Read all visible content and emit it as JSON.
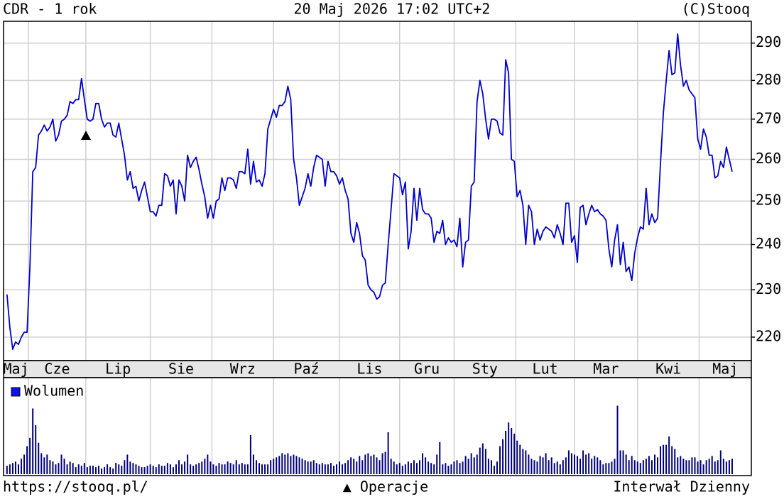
{
  "header": {
    "left": "CDR - 1 rok",
    "center": "20 Maj 2026 17:02 UTC+2",
    "right": "(C)Stooq"
  },
  "footer": {
    "left": "https://stooq.pl/",
    "center": "▲ Operacje",
    "right": "Interwał Dzienny"
  },
  "chart_data": [
    {
      "type": "line",
      "color": "#0000cc",
      "log": true,
      "grid": true,
      "ylim": [
        215.2,
        296
      ],
      "yticks": [
        220,
        230,
        240,
        250,
        260,
        270,
        280,
        290
      ],
      "xlim": [
        -1.2,
        259.7
      ],
      "xticks": [
        {
          "value": -1.2,
          "label": "Maj"
        },
        {
          "value": 7.5,
          "label": "Cze"
        },
        {
          "value": 27.5,
          "label": "Lip"
        },
        {
          "value": 50,
          "label": "Sie"
        },
        {
          "value": 71.5,
          "label": "Wrz"
        },
        {
          "value": 93,
          "label": "Paź"
        },
        {
          "value": 116,
          "label": "Lis"
        },
        {
          "value": 137,
          "label": "Gru"
        },
        {
          "value": 156,
          "label": "Sty"
        },
        {
          "value": 177.5,
          "label": "Lut"
        },
        {
          "value": 198,
          "label": "Mar"
        },
        {
          "value": 220,
          "label": "Kwi"
        },
        {
          "value": 241.5,
          "label": "Maj"
        }
      ],
      "values": [
        229,
        222,
        217.5,
        219,
        218.5,
        220,
        221,
        221,
        235,
        257,
        258,
        266,
        267,
        268.5,
        267,
        268,
        270,
        264.5,
        266,
        269.5,
        270,
        271,
        274.5,
        274,
        275,
        275,
        280.5,
        275,
        270,
        269.5,
        270,
        274,
        274,
        270,
        268,
        269,
        269,
        266,
        265.5,
        269,
        265,
        261,
        255,
        257,
        253,
        253.5,
        250,
        252.5,
        254.5,
        251,
        247.5,
        247.5,
        246.5,
        249,
        249,
        256.5,
        256,
        253.5,
        255,
        247,
        255,
        253.5,
        250,
        261,
        258,
        259.5,
        260.5,
        257.5,
        254,
        251,
        246,
        249,
        246,
        250,
        250.5,
        255.5,
        252.5,
        255.5,
        255.5,
        255,
        253,
        257,
        257,
        256.5,
        262.5,
        254,
        259.5,
        254.5,
        255,
        253.5,
        256.5,
        267.5,
        270,
        272.5,
        270.5,
        273.5,
        273.5,
        274.5,
        278.5,
        275,
        260,
        255.5,
        249,
        251,
        253,
        256.5,
        253.5,
        258,
        261,
        260.5,
        260,
        253.5,
        259.5,
        257,
        257,
        256,
        254,
        255.5,
        252.5,
        250.5,
        242.5,
        240.5,
        245,
        242.5,
        237.5,
        236.5,
        231,
        230,
        229.5,
        228,
        228.5,
        231,
        231.5,
        240,
        248,
        256.5,
        256,
        255.5,
        251.5,
        254.5,
        239,
        243,
        253,
        245.5,
        253,
        248,
        247,
        247,
        246,
        240.5,
        243,
        242.5,
        245.5,
        240,
        241.5,
        240.5,
        241,
        239.5,
        246,
        235,
        240.5,
        241,
        253.5,
        254.5,
        274.5,
        280,
        276.5,
        270,
        265,
        270,
        270,
        269.5,
        266.5,
        266,
        285.5,
        282,
        260,
        259.5,
        251,
        252.5,
        249,
        240,
        249,
        247.5,
        240,
        243.5,
        241,
        243,
        244,
        243.5,
        243,
        241.5,
        244.5,
        242.5,
        240,
        249.5,
        249.5,
        240.5,
        242,
        236,
        248.5,
        249,
        244.5,
        247,
        249,
        247.5,
        248,
        247,
        246.5,
        245.5,
        239,
        235,
        241,
        244.5,
        235.5,
        240.5,
        234,
        235,
        232,
        238,
        241.5,
        244,
        243.5,
        253,
        244.5,
        247,
        245,
        246,
        259,
        271.5,
        280,
        288,
        281.5,
        282,
        292.5,
        284,
        278.5,
        280,
        277.5,
        276.5,
        275.5,
        265,
        262.5,
        267.5,
        265.5,
        261,
        261,
        255.5,
        256,
        259.5,
        258,
        263,
        260,
        257
      ]
    },
    {
      "type": "bar",
      "ylim": [
        0,
        130
      ],
      "series": [
        {
          "name": "Wolumen",
          "color": "#00007a",
          "values": [
            12,
            14,
            16,
            18,
            14,
            22,
            28,
            40,
            52,
            94,
            70,
            45,
            30,
            24,
            28,
            20,
            18,
            14,
            16,
            28,
            22,
            14,
            18,
            16,
            10,
            14,
            12,
            16,
            10,
            12,
            12,
            10,
            12,
            8,
            10,
            14,
            10,
            8,
            16,
            14,
            12,
            20,
            28,
            18,
            16,
            14,
            12,
            10,
            10,
            12,
            14,
            12,
            10,
            14,
            12,
            12,
            16,
            14,
            10,
            14,
            20,
            14,
            18,
            28,
            14,
            12,
            14,
            16,
            18,
            22,
            28,
            18,
            14,
            12,
            16,
            14,
            14,
            18,
            16,
            14,
            20,
            14,
            16,
            14,
            14,
            56,
            28,
            20,
            16,
            14,
            14,
            14,
            20,
            22,
            24,
            26,
            30,
            28,
            30,
            26,
            28,
            26,
            24,
            22,
            20,
            18,
            18,
            20,
            16,
            14,
            16,
            14,
            14,
            16,
            12,
            14,
            18,
            14,
            16,
            20,
            24,
            22,
            18,
            26,
            20,
            28,
            30,
            26,
            28,
            24,
            20,
            30,
            32,
            60,
            22,
            18,
            14,
            16,
            12,
            14,
            18,
            16,
            20,
            16,
            20,
            30,
            24,
            18,
            16,
            14,
            28,
            46,
            14,
            16,
            12,
            14,
            18,
            20,
            16,
            18,
            26,
            22,
            30,
            24,
            28,
            38,
            44,
            36,
            22,
            20,
            12,
            18,
            40,
            50,
            62,
            74,
            66,
            58,
            48,
            42,
            36,
            34,
            28,
            22,
            20,
            18,
            26,
            24,
            30,
            20,
            24,
            16,
            18,
            14,
            20,
            24,
            34,
            30,
            28,
            26,
            22,
            34,
            28,
            30,
            22,
            26,
            24,
            20,
            14,
            16,
            16,
            18,
            22,
            98,
            34,
            34,
            28,
            20,
            26,
            20,
            18,
            16,
            20,
            22,
            26,
            20,
            28,
            24,
            40,
            42,
            42,
            54,
            40,
            36,
            24,
            26,
            22,
            20,
            20,
            24,
            24,
            18,
            20,
            14,
            20,
            22,
            26,
            18,
            20,
            34,
            22,
            18,
            20,
            22
          ]
        }
      ]
    }
  ]
}
